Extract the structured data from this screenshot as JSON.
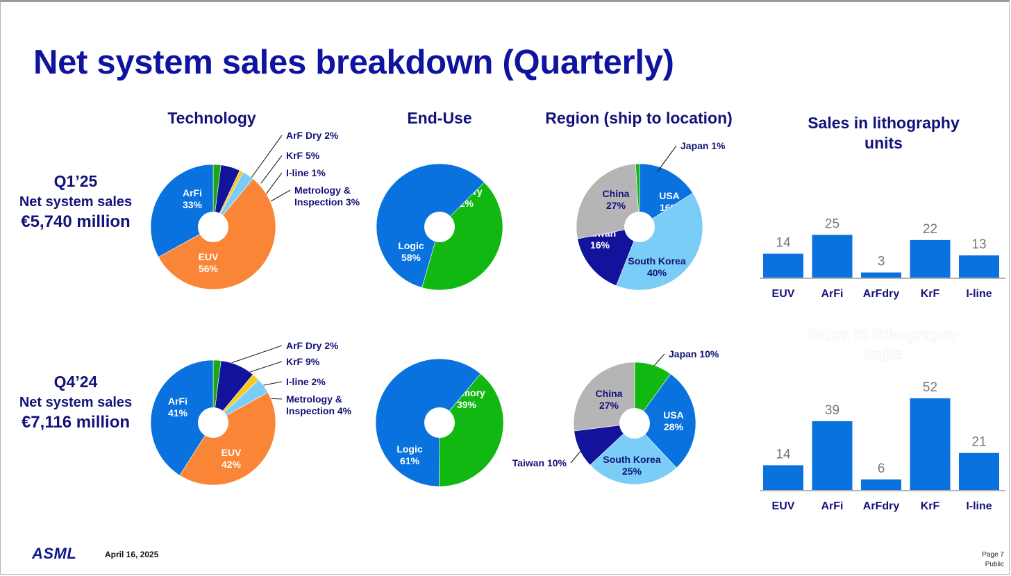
{
  "page": {
    "title": "Net system sales breakdown (Quarterly)",
    "headers": {
      "technology": "Technology",
      "end_use": "End-Use",
      "region": "Region (ship to location)",
      "litho_units": "Sales in lithography units",
      "litho_units_ghost": "Sales in lithography units"
    },
    "rows": [
      {
        "quarter": "Q1’25",
        "sub": "Net system sales",
        "amount": "€5,740 million"
      },
      {
        "quarter": "Q4’24",
        "sub": "Net system sales",
        "amount": "€7,116 million"
      }
    ],
    "footer": {
      "logo": "ASML",
      "date": "April 16, 2025",
      "page": "Page 7",
      "classification": "Public"
    }
  },
  "colors": {
    "title": "#0f14a0",
    "label": "#13127a",
    "euv": "#fb8536",
    "arfi": "#0a72de",
    "arfdry": "#1aa81a",
    "krf": "#12129a",
    "iline": "#f9c81a",
    "metrology": "#79cdf6",
    "logic": "#0a72de",
    "memory": "#12b812",
    "china": "#b5b5b5",
    "usa": "#0a72de",
    "south_korea": "#79cdf6",
    "taiwan": "#12129a",
    "japan": "#12b812",
    "bar": "#0a72de",
    "axis": "#9a9a9a"
  },
  "chart_data": [
    {
      "type": "pie",
      "id": "tech_q125",
      "title": "Technology",
      "slices": [
        {
          "label": "ArF Dry",
          "value": 2,
          "text": "ArF Dry 2%",
          "color_key": "arfdry",
          "outside": true
        },
        {
          "label": "KrF",
          "value": 5,
          "text": "KrF 5%",
          "color_key": "krf",
          "outside": true
        },
        {
          "label": "I-line",
          "value": 1,
          "text": "I-line 1%",
          "color_key": "iline",
          "outside": true
        },
        {
          "label": "Metrology & Inspection",
          "value": 3,
          "text": "Metrology & Inspection 3%",
          "color_key": "metrology",
          "outside": true
        },
        {
          "label": "EUV",
          "value": 56,
          "text": "EUV 56%",
          "color_key": "euv",
          "outside": false
        },
        {
          "label": "ArFi",
          "value": 33,
          "text": "ArFi 33%",
          "color_key": "arfi",
          "outside": false
        }
      ]
    },
    {
      "type": "pie",
      "id": "enduse_q125",
      "title": "End-Use",
      "slices": [
        {
          "label": "Memory",
          "value": 42,
          "text": "Memory 42%",
          "color_key": "memory",
          "outside": false
        },
        {
          "label": "Logic",
          "value": 58,
          "text": "Logic 58%",
          "color_key": "logic",
          "outside": false
        }
      ]
    },
    {
      "type": "pie",
      "id": "region_q125",
      "title": "Region (ship to location)",
      "slices": [
        {
          "label": "USA",
          "value": 16,
          "text": "USA 16%",
          "color_key": "usa",
          "outside": false
        },
        {
          "label": "South Korea",
          "value": 40,
          "text": "South Korea 40%",
          "color_key": "south_korea",
          "outside": false
        },
        {
          "label": "Taiwan",
          "value": 16,
          "text": "Taiwan 16%",
          "color_key": "taiwan",
          "outside": false
        },
        {
          "label": "China",
          "value": 27,
          "text": "China 27%",
          "color_key": "china",
          "outside": false
        },
        {
          "label": "Japan",
          "value": 1,
          "text": "Japan 1%",
          "color_key": "japan",
          "outside": true
        }
      ]
    },
    {
      "type": "bar",
      "id": "litho_q125",
      "title": "Sales in lithography units",
      "categories": [
        "EUV",
        "ArFi",
        "ArFdry",
        "KrF",
        "I-line"
      ],
      "values": [
        14,
        25,
        3,
        22,
        13
      ]
    },
    {
      "type": "pie",
      "id": "tech_q424",
      "title": "Technology",
      "slices": [
        {
          "label": "ArF Dry",
          "value": 2,
          "text": "ArF Dry 2%",
          "color_key": "arfdry",
          "outside": true
        },
        {
          "label": "KrF",
          "value": 9,
          "text": "KrF 9%",
          "color_key": "krf",
          "outside": true
        },
        {
          "label": "I-line",
          "value": 2,
          "text": "I-line 2%",
          "color_key": "iline",
          "outside": true
        },
        {
          "label": "Metrology & Inspection",
          "value": 4,
          "text": "Metrology & Inspection 4%",
          "color_key": "metrology",
          "outside": true
        },
        {
          "label": "EUV",
          "value": 42,
          "text": "EUV 42%",
          "color_key": "euv",
          "outside": false
        },
        {
          "label": "ArFi",
          "value": 41,
          "text": "ArFi 41%",
          "color_key": "arfi",
          "outside": false
        }
      ]
    },
    {
      "type": "pie",
      "id": "enduse_q424",
      "title": "End-Use",
      "slices": [
        {
          "label": "Memory",
          "value": 39,
          "text": "Memory 39%",
          "color_key": "memory",
          "outside": false
        },
        {
          "label": "Logic",
          "value": 61,
          "text": "Logic 61%",
          "color_key": "logic",
          "outside": false
        }
      ]
    },
    {
      "type": "pie",
      "id": "region_q424",
      "title": "Region (ship to location)",
      "slices": [
        {
          "label": "Japan",
          "value": 10,
          "text": "Japan 10%",
          "color_key": "japan",
          "outside": true
        },
        {
          "label": "USA",
          "value": 28,
          "text": "USA 28%",
          "color_key": "usa",
          "outside": false
        },
        {
          "label": "South Korea",
          "value": 25,
          "text": "South Korea 25%",
          "color_key": "south_korea",
          "outside": false
        },
        {
          "label": "Taiwan",
          "value": 10,
          "text": "Taiwan 10%",
          "color_key": "taiwan",
          "outside": true
        },
        {
          "label": "China",
          "value": 27,
          "text": "China 27%",
          "color_key": "china",
          "outside": false
        }
      ]
    },
    {
      "type": "bar",
      "id": "litho_q424",
      "title": "Sales in lithography units",
      "categories": [
        "EUV",
        "ArFi",
        "ArFdry",
        "KrF",
        "I-line"
      ],
      "values": [
        14,
        39,
        6,
        52,
        21
      ]
    }
  ]
}
